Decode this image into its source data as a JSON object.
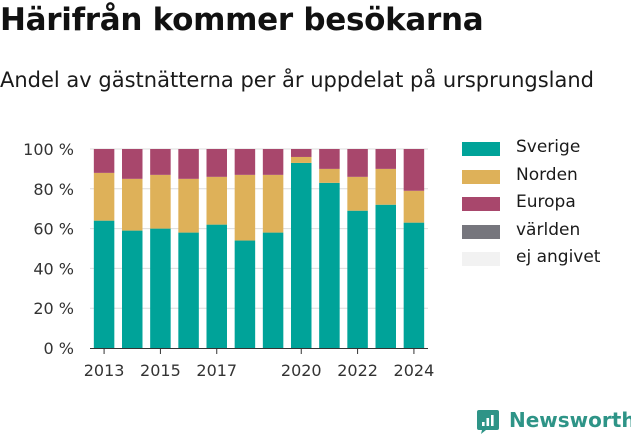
{
  "title": "Härifrån kommer besökarna",
  "subtitle": "Andel av gästnätterna per år uppdelat på ursprungsland",
  "brand": "Newsworthy",
  "chart_data": {
    "type": "bar",
    "stacked": true,
    "x": [
      2013,
      2014,
      2015,
      2016,
      2017,
      2018,
      2019,
      2020,
      2021,
      2022,
      2023,
      2024
    ],
    "x_tick_values": [
      2013,
      2015,
      2017,
      2020,
      2022,
      2024
    ],
    "x_tick_labels": [
      "2013",
      "2015",
      "2017",
      "2020",
      "2022",
      "2024"
    ],
    "y_tick_values": [
      0,
      20,
      40,
      60,
      80,
      100
    ],
    "y_tick_labels": [
      "0 %",
      "20 %",
      "40 %",
      "60 %",
      "80 %",
      "100 %"
    ],
    "ylim": [
      0,
      100
    ],
    "grid": true,
    "legend_position": "right",
    "series": [
      {
        "name": "Sverige",
        "color": "#00a399",
        "values": [
          64,
          59,
          60,
          58,
          62,
          54,
          58,
          93,
          83,
          69,
          72,
          63
        ]
      },
      {
        "name": "Norden",
        "color": "#deb159",
        "values": [
          24,
          26,
          27,
          27,
          24,
          33,
          29,
          3,
          7,
          17,
          18,
          16
        ]
      },
      {
        "name": "Europa",
        "color": "#a8476c",
        "values": [
          12,
          15,
          13,
          15,
          14,
          13,
          13,
          4,
          10,
          14,
          10,
          21
        ]
      },
      {
        "name": "världen",
        "color": "#76767d",
        "values": [
          0,
          0,
          0,
          0,
          0,
          0,
          0,
          0,
          0,
          0,
          0,
          0
        ]
      },
      {
        "name": "ej angivet",
        "color": "#f2f2f2",
        "values": [
          0,
          0,
          0,
          0,
          0,
          0,
          0,
          0,
          0,
          0,
          0,
          0
        ]
      }
    ]
  }
}
